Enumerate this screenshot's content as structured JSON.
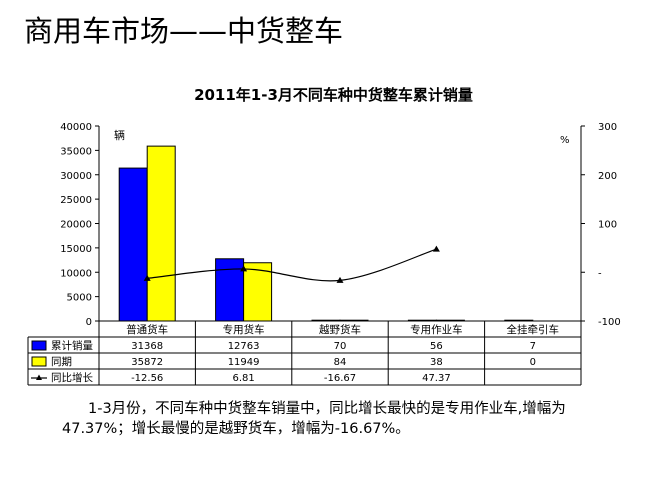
{
  "slide": {
    "title": "商用车市场——中货整车",
    "summary": "1-3月份，不同车种中货整车销量中，同比增长最快的是专用作业车,增幅为47.37%；增长最慢的是越野货车，增幅为-16.67%。"
  },
  "chart_data": {
    "type": "bar",
    "title": "2011年1-3月不同车种中货整车累计销量",
    "categories": [
      "普通货车",
      "专用货车",
      "越野货车",
      "专用作业车",
      "全挂牵引车"
    ],
    "series": [
      {
        "name": "累计销量",
        "kind": "bar",
        "axis": "left",
        "color": "#0000ff",
        "values": [
          31368,
          12763,
          70,
          56,
          7
        ],
        "labels": [
          "31368",
          "12763",
          "70",
          "56",
          "7"
        ]
      },
      {
        "name": "同期",
        "kind": "bar",
        "axis": "left",
        "color": "#ffff00",
        "values": [
          35872,
          11949,
          84,
          38,
          0
        ],
        "labels": [
          "35872",
          "11949",
          "84",
          "38",
          "0"
        ]
      },
      {
        "name": "同比增长",
        "kind": "line",
        "axis": "right",
        "color": "#000000",
        "values": [
          -12.56,
          6.81,
          -16.67,
          47.37,
          null
        ],
        "labels": [
          "-12.56",
          "6.81",
          "-16.67",
          "47.37",
          ""
        ]
      }
    ],
    "y_left": {
      "unit": "辆",
      "min": 0,
      "max": 40000,
      "ticks": [
        "0",
        "5000",
        "10000",
        "15000",
        "20000",
        "25000",
        "30000",
        "35000",
        "40000"
      ]
    },
    "y_right": {
      "unit": "%",
      "min": -100,
      "max": 300,
      "ticks": [
        "-100",
        "-",
        "100",
        "200",
        "300"
      ]
    },
    "data_table": true,
    "grid": false,
    "legend": "data-table"
  }
}
